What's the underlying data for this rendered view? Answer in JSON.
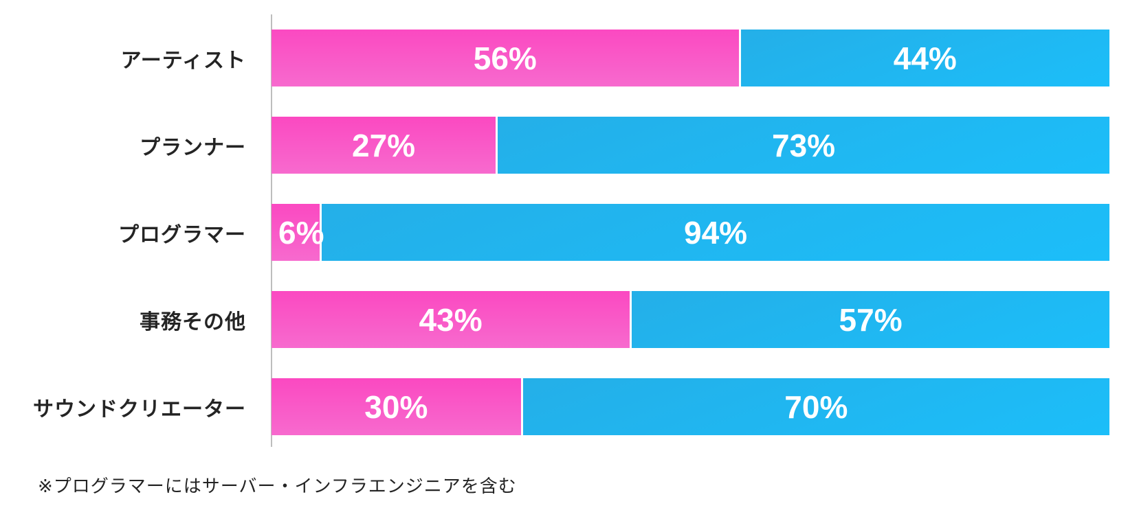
{
  "chart_data": {
    "type": "bar",
    "orientation": "horizontal",
    "stacked": true,
    "unit": "%",
    "categories": [
      "アーティスト",
      "プランナー",
      "プログラマー",
      "事務その他",
      "サウンドクリエーター"
    ],
    "series": [
      {
        "name": "pink-left-segment",
        "color": "#f858c9",
        "values": [
          56,
          27,
          6,
          43,
          30
        ]
      },
      {
        "name": "blue-right-segment",
        "color": "#1eb9f4",
        "values": [
          44,
          73,
          94,
          57,
          70
        ]
      }
    ],
    "xlim": [
      0,
      100
    ],
    "grid": false,
    "legend": false,
    "note": "※プログラマーにはサーバー・インフラエンジニアを含む"
  },
  "colors": {
    "pink_top": "#fb49c1",
    "pink_bottom": "#f76ace",
    "blue_top": "#24afe8",
    "blue_bottom": "#1cbef9",
    "axis": "#bdbdbd",
    "label_text": "#242424",
    "value_text": "#ffffff",
    "background": "#ffffff"
  }
}
